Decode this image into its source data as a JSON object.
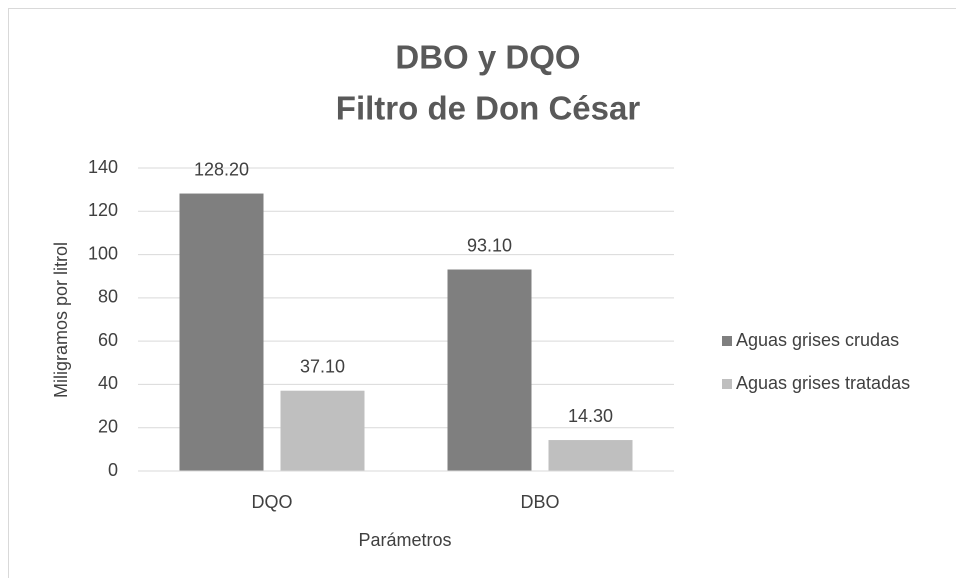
{
  "chart_data": {
    "type": "bar",
    "title": [
      "DBO y DQO",
      "Filtro de Don César"
    ],
    "x_label": "Parámetros",
    "y_label": "Miligramos por litrol",
    "categories": [
      "DQO",
      "DBO"
    ],
    "series": [
      {
        "name": "Aguas grises crudas",
        "color": "#7f7f7f",
        "values": [
          128.2,
          93.1
        ],
        "value_labels": [
          "128.20",
          "93.10"
        ]
      },
      {
        "name": "Aguas grises tratadas",
        "color": "#bfbfbf",
        "values": [
          37.1,
          14.3
        ],
        "value_labels": [
          "37.10",
          "14.30"
        ]
      }
    ],
    "ylim": [
      0,
      140
    ],
    "yticks": [
      0,
      20,
      40,
      60,
      80,
      100,
      120,
      140
    ],
    "grid": true,
    "legend": "right"
  }
}
